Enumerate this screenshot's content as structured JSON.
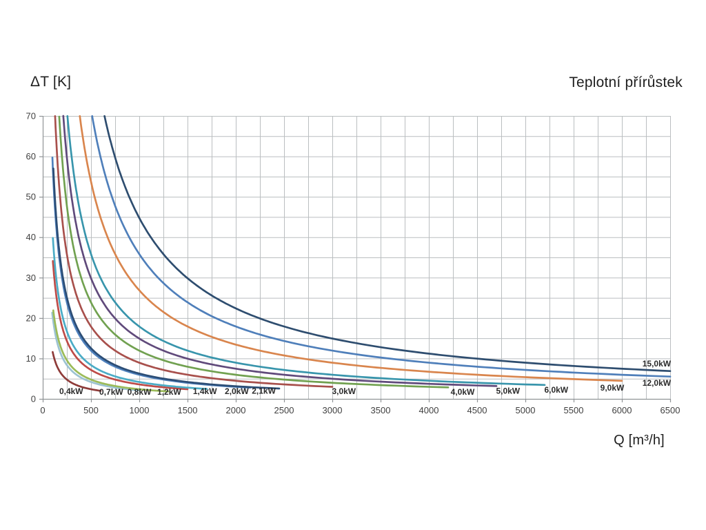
{
  "titles": {
    "y_axis_title": "ΔT [K]",
    "chart_title": "Teplotní přírůstek",
    "x_axis_title": "Q [m³/h]"
  },
  "chart_data": {
    "type": "line",
    "title": "Teplotní přírůstek",
    "xlabel": "Q [m³/h]",
    "ylabel": "ΔT [K]",
    "grid": true,
    "legend_position": "inline-labels-at-curve-ends",
    "x_axis": {
      "min": 0,
      "max": 6500,
      "grid_step": 250,
      "label_step": 500,
      "tick_labels": [
        "0",
        "500",
        "1000",
        "1500",
        "2000",
        "2500",
        "3000",
        "3500",
        "4000",
        "4500",
        "5000",
        "5500",
        "6000",
        "6500"
      ]
    },
    "y_axis": {
      "min": 0,
      "max": 70,
      "grid_step": 5,
      "label_step": 10,
      "tick_labels": [
        "0",
        "10",
        "20",
        "30",
        "40",
        "50",
        "60",
        "70"
      ]
    },
    "formula": "deltaT = k * P_kW / Q",
    "k": 2985,
    "series": [
      {
        "label": "0,4kW",
        "power_kw": 0.4,
        "q_min": 103,
        "q_max": 600,
        "color": "#8E3B39",
        "label_q": 295,
        "label_dt": 1.9
      },
      {
        "label": "0,7kW",
        "power_kw": 0.7,
        "q_min": 98,
        "q_max": 1000,
        "color": "#9CC3D2",
        "label_q": 710,
        "label_dt": 1.7
      },
      {
        "label": "0,8kW",
        "power_kw": 0.8,
        "q_min": 109,
        "q_max": 1300,
        "color": "#9BBB59",
        "label_q": 1000,
        "label_dt": 1.7
      },
      {
        "label": "1,2kW",
        "power_kw": 1.2,
        "q_min": 105,
        "q_max": 1500,
        "color": "#BE4B48",
        "label_q": 1310,
        "label_dt": 1.7
      },
      {
        "label": "1,4kW",
        "power_kw": 1.4,
        "q_min": 105,
        "q_max": 1700,
        "color": "#4BACC6",
        "label_q": 1680,
        "label_dt": 1.9
      },
      {
        "label": "2,0kW",
        "power_kw": 2.0,
        "q_min": 100,
        "q_max": 2150,
        "color": "#4F81BD",
        "label_q": 2010,
        "label_dt": 1.9
      },
      {
        "label": "2,1kW",
        "power_kw": 2.1,
        "q_min": 110,
        "q_max": 2450,
        "color": "#2C4D75",
        "label_q": 2290,
        "label_dt": 2.0
      },
      {
        "label": "3,0kW",
        "power_kw": 3.0,
        "q_min": 128,
        "q_max": 3000,
        "color": "#A8504C",
        "label_q": 3120,
        "label_dt": 1.9
      },
      {
        "label": "4,0kW",
        "power_kw": 4.0,
        "q_min": 171,
        "q_max": 4200,
        "color": "#71A150",
        "label_q": 4350,
        "label_dt": 1.7
      },
      {
        "label": "5,0kW",
        "power_kw": 5.0,
        "q_min": 213,
        "q_max": 4700,
        "color": "#604A7B",
        "label_q": 4820,
        "label_dt": 2.0
      },
      {
        "label": "6,0kW",
        "power_kw": 6.0,
        "q_min": 256,
        "q_max": 5200,
        "color": "#3895AC",
        "label_q": 5320,
        "label_dt": 2.2
      },
      {
        "label": "9,0kW",
        "power_kw": 9.0,
        "q_min": 384,
        "q_max": 6000,
        "color": "#D9854D",
        "label_q": 5900,
        "label_dt": 2.7
      },
      {
        "label": "12,0kW",
        "power_kw": 12.0,
        "q_min": 512,
        "q_max": 6500,
        "color": "#4F7FBA",
        "label_q": 6360,
        "label_dt": 3.9
      },
      {
        "label": "15,0kW",
        "power_kw": 15.0,
        "q_min": 640,
        "q_max": 6500,
        "color": "#2E4D6F",
        "label_q": 6360,
        "label_dt": 8.7
      }
    ]
  },
  "style": {
    "background": "#ffffff",
    "grid_color": "#babec0",
    "axis_color": "#8f9396",
    "tick_label_color": "#3f3f3f",
    "curve_label_color": "#2b2b2b"
  }
}
